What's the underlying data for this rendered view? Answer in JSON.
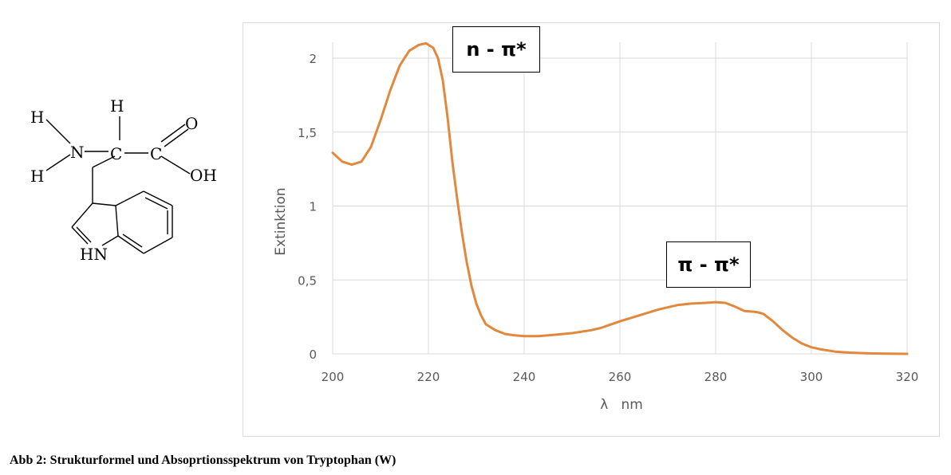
{
  "molecule": {
    "atoms": {
      "h_left_top": "H",
      "h_left_bottom": "H",
      "n": "N",
      "h_top": "H",
      "c_alpha": "C",
      "c_carboxyl": "C",
      "o": "O",
      "oh": "OH",
      "hn": "HN"
    }
  },
  "chart_data": {
    "type": "line",
    "xlabel": "λ   nm",
    "ylabel": "Extinktion",
    "xlim": [
      200,
      320
    ],
    "ylim": [
      0,
      2
    ],
    "x_ticks": [
      "200",
      "220",
      "240",
      "260",
      "280",
      "300",
      "320"
    ],
    "y_ticks": [
      "0",
      "0,5",
      "1",
      "1,5",
      "2"
    ],
    "grid": true,
    "series": [
      {
        "color": "#E2883D",
        "x": [
          200,
          202,
          204,
          206,
          208,
          210,
          212,
          214,
          216,
          218,
          219.5,
          221,
          222,
          223,
          224,
          225,
          226,
          227,
          228,
          229,
          230,
          231,
          232,
          234,
          236,
          238,
          240,
          243,
          246,
          250,
          254,
          256,
          260,
          264,
          268,
          272,
          275,
          278,
          280,
          282,
          284,
          286,
          288,
          289,
          290,
          292,
          294,
          296,
          298,
          300,
          302,
          305,
          308,
          312,
          316,
          320
        ],
        "y": [
          1.36,
          1.3,
          1.28,
          1.3,
          1.4,
          1.58,
          1.78,
          1.95,
          2.05,
          2.09,
          2.1,
          2.07,
          2.0,
          1.85,
          1.6,
          1.3,
          1.05,
          0.82,
          0.62,
          0.46,
          0.34,
          0.26,
          0.2,
          0.16,
          0.135,
          0.125,
          0.12,
          0.12,
          0.128,
          0.14,
          0.16,
          0.175,
          0.22,
          0.26,
          0.3,
          0.33,
          0.34,
          0.345,
          0.35,
          0.345,
          0.32,
          0.29,
          0.285,
          0.28,
          0.27,
          0.22,
          0.16,
          0.11,
          0.07,
          0.045,
          0.03,
          0.015,
          0.008,
          0.003,
          0.001,
          0.0
        ]
      }
    ],
    "annotations": [
      {
        "text": "n - π*"
      },
      {
        "text": "π - π*"
      }
    ]
  },
  "caption": "Abb 2: Strukturformel und Absoprtionsspektrum von Tryptophan (W)"
}
